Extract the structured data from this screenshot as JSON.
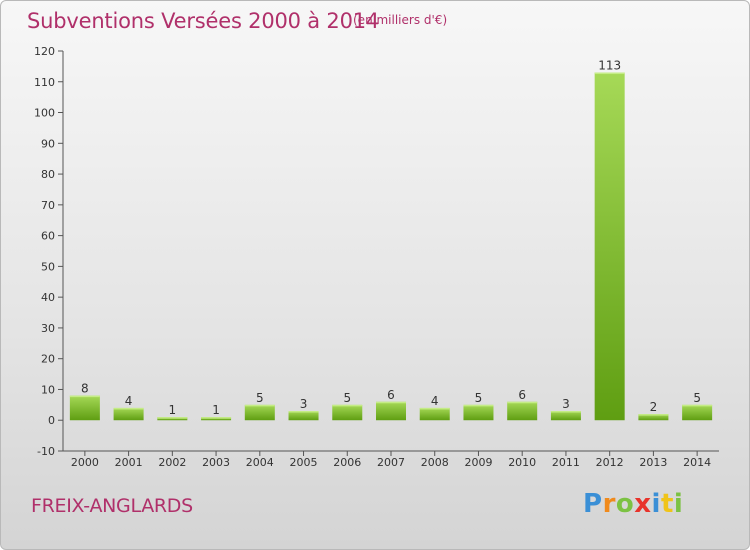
{
  "header": {
    "title": "Subventions Versées 2000 à 2014",
    "unit": "(en milliers d'€)"
  },
  "footer": {
    "commune": "FREIX-ANGLARDS",
    "logo_text": "Proxiti",
    "logo_letters": [
      {
        "ch": "P",
        "color": "#3a8fd6"
      },
      {
        "ch": "r",
        "color": "#f08a1c"
      },
      {
        "ch": "o",
        "color": "#7cc243"
      },
      {
        "ch": "x",
        "color": "#e8332b"
      },
      {
        "ch": "i",
        "color": "#3a8fd6"
      },
      {
        "ch": "t",
        "color": "#f0c419"
      },
      {
        "ch": "i",
        "color": "#7cc243"
      }
    ]
  },
  "chart_data": {
    "type": "bar",
    "title": "Subventions Versées 2000 à 2014",
    "subtitle": "(en milliers d'€)",
    "categories": [
      "2000",
      "2001",
      "2002",
      "2003",
      "2004",
      "2005",
      "2006",
      "2007",
      "2008",
      "2009",
      "2010",
      "2011",
      "2012",
      "2013",
      "2014"
    ],
    "values": [
      8,
      4,
      1,
      1,
      5,
      3,
      5,
      6,
      4,
      5,
      6,
      3,
      113,
      2,
      5
    ],
    "ylim": [
      -10,
      120
    ],
    "yticks": [
      -10,
      0,
      10,
      20,
      30,
      40,
      50,
      60,
      70,
      80,
      90,
      100,
      110,
      120
    ],
    "grid": false,
    "colors": {
      "bar_light": "#a6d957",
      "bar_dark": "#5f9e12",
      "text_accent": "#b0306a"
    }
  }
}
